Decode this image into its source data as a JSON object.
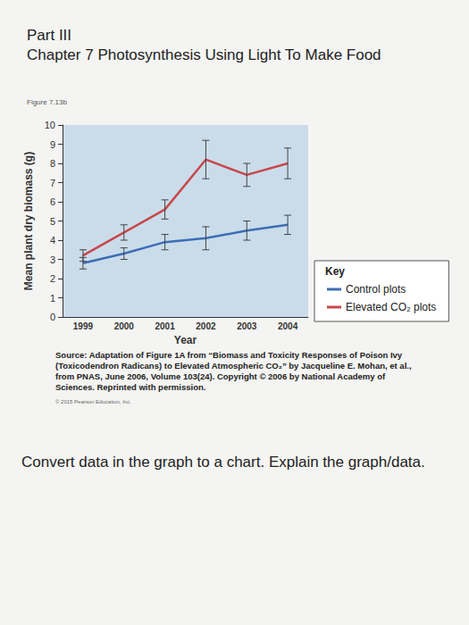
{
  "page": {
    "part": "Part III",
    "chapter": "Chapter 7 Photosynthesis Using Light To Make Food",
    "figure_label": "Figure 7.13b",
    "source": "Source: Adaptation of Figure 1A from “Biomass and Toxicity Responses of Poison Ivy (Toxicodendron Radicans) to Elevated Atmospheric CO₂” by Jacqueline E. Mohan, et al., from PNAS, June 2006, Volume 103(24). Copyright © 2006 by National Academy of Sciences. Reprinted with permission.",
    "copyright": "© 2015 Pearson Education, Inc.",
    "question": "Convert data in the graph to a chart. Explain the graph/data."
  },
  "chart_data": {
    "type": "line",
    "x_label": "Year",
    "y_label": "Mean plant dry biomass (g)",
    "key_title": "Key",
    "categories": [
      "1999",
      "2000",
      "2001",
      "2002",
      "2003",
      "2004"
    ],
    "series": [
      {
        "name": "Control plots",
        "color": "#3d6db5",
        "values": [
          2.8,
          3.3,
          3.9,
          4.1,
          4.5,
          4.8
        ],
        "errors": [
          0.3,
          0.3,
          0.4,
          0.6,
          0.5,
          0.5
        ]
      },
      {
        "name": "Elevated CO₂ plots",
        "color": "#c8474b",
        "values": [
          3.2,
          4.4,
          5.6,
          8.2,
          7.4,
          8.0
        ],
        "errors": [
          0.3,
          0.4,
          0.5,
          1.0,
          0.6,
          0.8
        ]
      }
    ],
    "ylim": [
      0,
      10
    ],
    "yticks": [
      0,
      1,
      2,
      3,
      4,
      5,
      6,
      7,
      8,
      9,
      10
    ],
    "grid": false,
    "legend": "right"
  }
}
